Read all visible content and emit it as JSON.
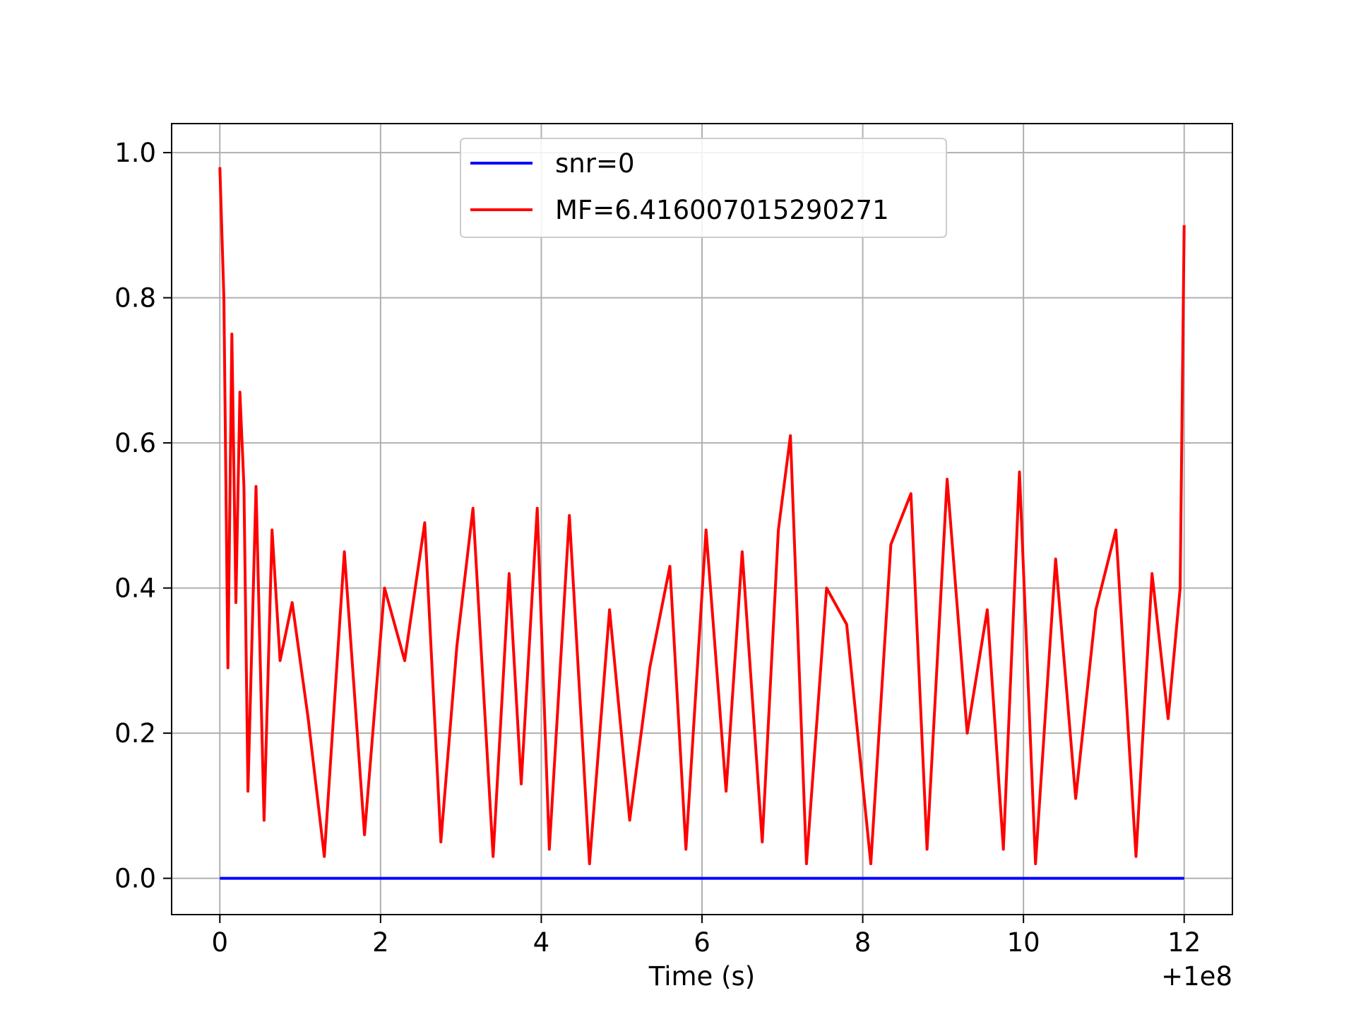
{
  "chart_data": {
    "type": "line",
    "xlabel": "Time (s)",
    "ylabel": "",
    "x_offset_label": "+1e8",
    "xlim": [
      99999999.4,
      100000012.6
    ],
    "ylim": [
      -0.05,
      1.04
    ],
    "xticks": [
      100000000,
      100000002,
      100000004,
      100000006,
      100000008,
      100000010,
      100000012
    ],
    "xtick_labels": [
      "0",
      "2",
      "4",
      "6",
      "8",
      "10",
      "12"
    ],
    "yticks": [
      0.0,
      0.2,
      0.4,
      0.6,
      0.8,
      1.0
    ],
    "ytick_labels": [
      "0.0",
      "0.2",
      "0.4",
      "0.6",
      "0.8",
      "1.0"
    ],
    "grid": true,
    "legend_position": "top-center",
    "series": [
      {
        "name": "snr=0",
        "color": "#0000ff",
        "x": [
          100000000,
          100000012
        ],
        "y": [
          0.0,
          0.0
        ]
      },
      {
        "name": "MF=6.416007015290271",
        "color": "#ff0000",
        "x": [
          100000000.0,
          100000000.05,
          100000000.1,
          100000000.15,
          100000000.2,
          100000000.25,
          100000000.3,
          100000000.35,
          100000000.45,
          100000000.55,
          100000000.65,
          100000000.75,
          100000000.9,
          100000001.1,
          100000001.3,
          100000001.55,
          100000001.8,
          100000002.05,
          100000002.3,
          100000002.55,
          100000002.75,
          100000002.95,
          100000003.15,
          100000003.4,
          100000003.6,
          100000003.75,
          100000003.95,
          100000004.1,
          100000004.35,
          100000004.6,
          100000004.85,
          100000005.1,
          100000005.35,
          100000005.6,
          100000005.8,
          100000006.05,
          100000006.3,
          100000006.5,
          100000006.75,
          100000006.95,
          100000007.1,
          100000007.3,
          100000007.55,
          100000007.8,
          100000008.1,
          100000008.35,
          100000008.6,
          100000008.8,
          100000009.05,
          100000009.3,
          100000009.55,
          100000009.75,
          100000009.95,
          100000010.15,
          100000010.4,
          100000010.65,
          100000010.9,
          100000011.15,
          100000011.4,
          100000011.6,
          100000011.8,
          100000011.95,
          100000012.0
        ],
        "y": [
          0.98,
          0.8,
          0.29,
          0.75,
          0.38,
          0.67,
          0.54,
          0.12,
          0.54,
          0.08,
          0.48,
          0.3,
          0.38,
          0.22,
          0.03,
          0.45,
          0.06,
          0.4,
          0.3,
          0.49,
          0.05,
          0.32,
          0.51,
          0.03,
          0.42,
          0.13,
          0.51,
          0.04,
          0.5,
          0.02,
          0.37,
          0.08,
          0.29,
          0.43,
          0.04,
          0.48,
          0.12,
          0.45,
          0.05,
          0.48,
          0.61,
          0.02,
          0.4,
          0.35,
          0.02,
          0.46,
          0.53,
          0.04,
          0.55,
          0.2,
          0.37,
          0.04,
          0.56,
          0.02,
          0.44,
          0.11,
          0.37,
          0.48,
          0.03,
          0.42,
          0.22,
          0.4,
          0.9
        ]
      }
    ]
  }
}
